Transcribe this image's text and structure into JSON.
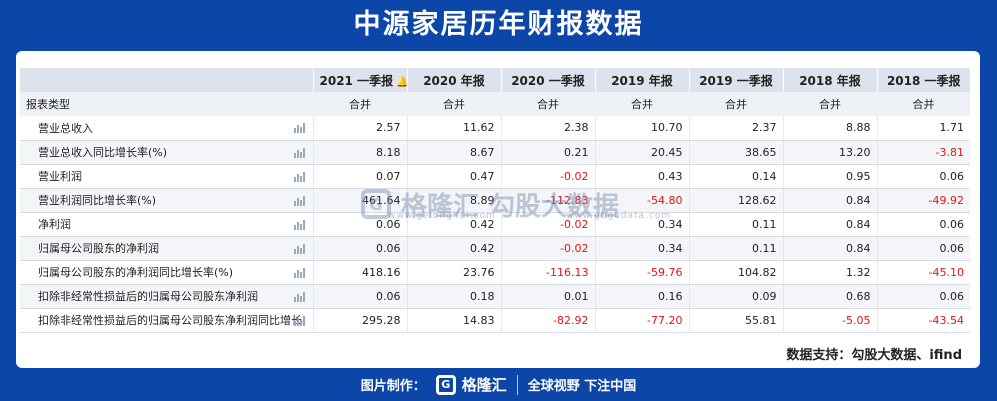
{
  "title": "中源家居历年财报数据",
  "header": {
    "columns": [
      "2021 一季报",
      "2020 年报",
      "2020 一季报",
      "2019 年报",
      "2019 一季报",
      "2018 年报",
      "2018 一季报"
    ],
    "sub_label": "报表类型",
    "sub_values": [
      "合并",
      "合并",
      "合并",
      "合并",
      "合并",
      "合并",
      "合并"
    ]
  },
  "rows": [
    {
      "label": "营业总收入",
      "values": [
        "2.57",
        "11.62",
        "2.38",
        "10.70",
        "2.37",
        "8.88",
        "1.71"
      ]
    },
    {
      "label": "营业总收入同比增长率(%)",
      "values": [
        "8.18",
        "8.67",
        "0.21",
        "20.45",
        "38.65",
        "13.20",
        "-3.81"
      ]
    },
    {
      "label": "营业利润",
      "values": [
        "0.07",
        "0.47",
        "-0.02",
        "0.43",
        "0.14",
        "0.95",
        "0.06"
      ]
    },
    {
      "label": "营业利润同比增长率(%)",
      "values": [
        "461.64",
        "8.89",
        "-112.83",
        "-54.80",
        "128.62",
        "0.84",
        "-49.92"
      ]
    },
    {
      "label": "净利润",
      "values": [
        "0.06",
        "0.42",
        "-0.02",
        "0.34",
        "0.11",
        "0.84",
        "0.06"
      ]
    },
    {
      "label": "归属母公司股东的净利润",
      "values": [
        "0.06",
        "0.42",
        "-0.02",
        "0.34",
        "0.11",
        "0.84",
        "0.06"
      ]
    },
    {
      "label": "归属母公司股东的净利润同比增长率(%)",
      "values": [
        "418.16",
        "23.76",
        "-116.13",
        "-59.76",
        "104.82",
        "1.32",
        "-45.10"
      ]
    },
    {
      "label": "扣除非经常性损益后的归属母公司股东净利润",
      "values": [
        "0.06",
        "0.18",
        "0.01",
        "0.16",
        "0.09",
        "0.68",
        "0.06"
      ]
    },
    {
      "label": "扣除非经常性损益后的归属母公司股东净利润同比增长率",
      "values": [
        "295.28",
        "14.83",
        "-82.92",
        "-77.20",
        "55.81",
        "-5.05",
        "-43.54"
      ]
    }
  ],
  "watermark": {
    "brand": "格隆汇",
    "brand_url": "www.gelonghui.com",
    "partner": "勾股大数据",
    "partner_url": "www.gogudata.com"
  },
  "source": "数据支持：勾股大数据、ifind",
  "footer": {
    "made_by": "图片制作：",
    "brand": "格隆汇",
    "slogan": "全球视野 下注中国"
  },
  "colors": {
    "background": "#0b46a8",
    "negative": "#e8150f",
    "header_bg": "#dde3ec"
  }
}
